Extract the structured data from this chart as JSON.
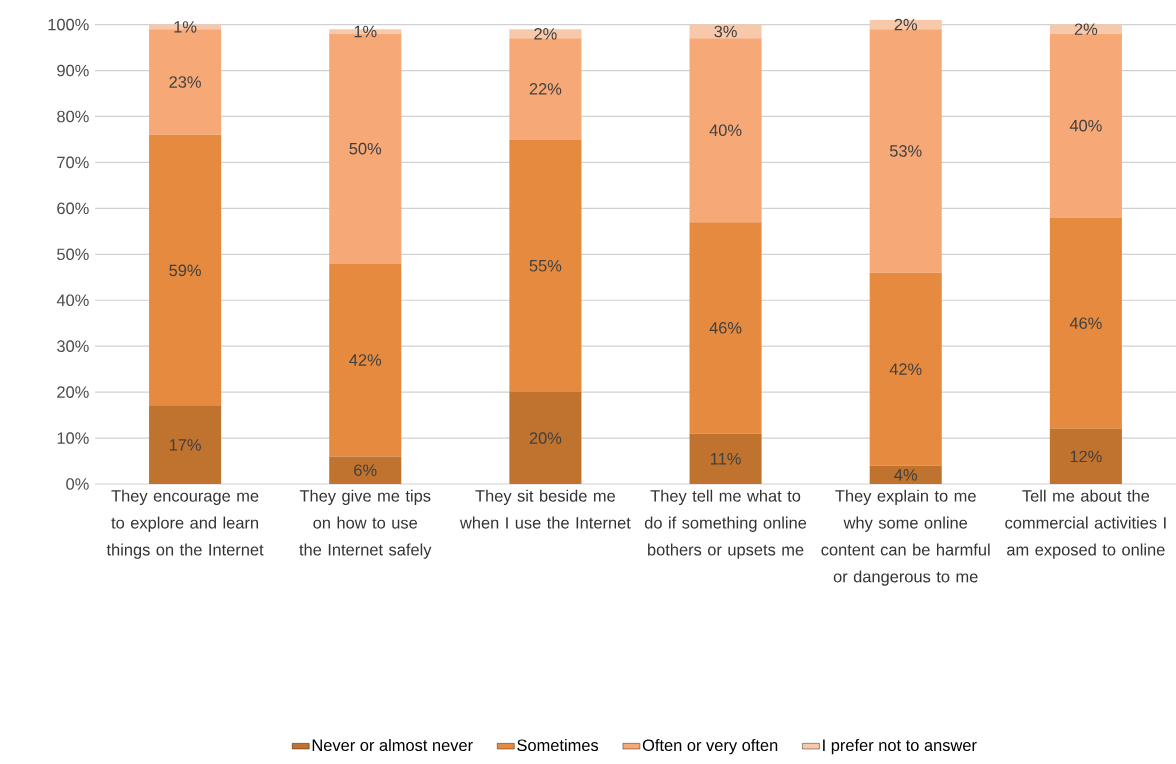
{
  "chart_data": {
    "type": "bar",
    "stacked": true,
    "grid": "y",
    "legend": "bottom",
    "categories": [
      "They encourage me to explore and learn things on the Internet",
      "They give me tips on how to use the Internet safely",
      "They sit beside me when I use the Internet",
      "They tell me what to do if something online bothers or upsets me",
      "They explain to me why some online content can be harmful or dangerous to me",
      "Tell me about the commercial activities I am exposed to online"
    ],
    "ylim": [
      0,
      101
    ],
    "yticks": [
      {
        "value": 0,
        "label": "0%"
      },
      {
        "value": 10,
        "label": "10%"
      },
      {
        "value": 20,
        "label": "20%"
      },
      {
        "value": 30,
        "label": "30%"
      },
      {
        "value": 40,
        "label": "40%"
      },
      {
        "value": 50,
        "label": "50%"
      },
      {
        "value": 60,
        "label": "60%"
      },
      {
        "value": 70,
        "label": "70%"
      },
      {
        "value": 80,
        "label": "80%"
      },
      {
        "value": 90,
        "label": "90%"
      },
      {
        "value": 100,
        "label": "100%"
      }
    ],
    "series": [
      {
        "name": "Never or almost never",
        "color": "#c0722f",
        "values": [
          17,
          6,
          20,
          11,
          4,
          12
        ],
        "value_labels": [
          "17%",
          "6%",
          "20%",
          "11%",
          "4%",
          "12%"
        ]
      },
      {
        "name": "Sometimes",
        "color": "#e68a3f",
        "values": [
          59,
          42,
          55,
          46,
          42,
          46
        ],
        "value_labels": [
          "59%",
          "42%",
          "55%",
          "46%",
          "42%",
          "46%"
        ]
      },
      {
        "name": "Often or very often",
        "color": "#f6a877",
        "values": [
          23,
          50,
          22,
          40,
          53,
          40
        ],
        "value_labels": [
          "23%",
          "50%",
          "22%",
          "40%",
          "53%",
          "40%"
        ]
      },
      {
        "name": "I prefer not to answer",
        "color": "#f8c8aa",
        "values": [
          1,
          1,
          2,
          3,
          2,
          2
        ],
        "value_labels": [
          "1%",
          "1%",
          "2%",
          "3%",
          "2%",
          "2%"
        ]
      }
    ]
  }
}
